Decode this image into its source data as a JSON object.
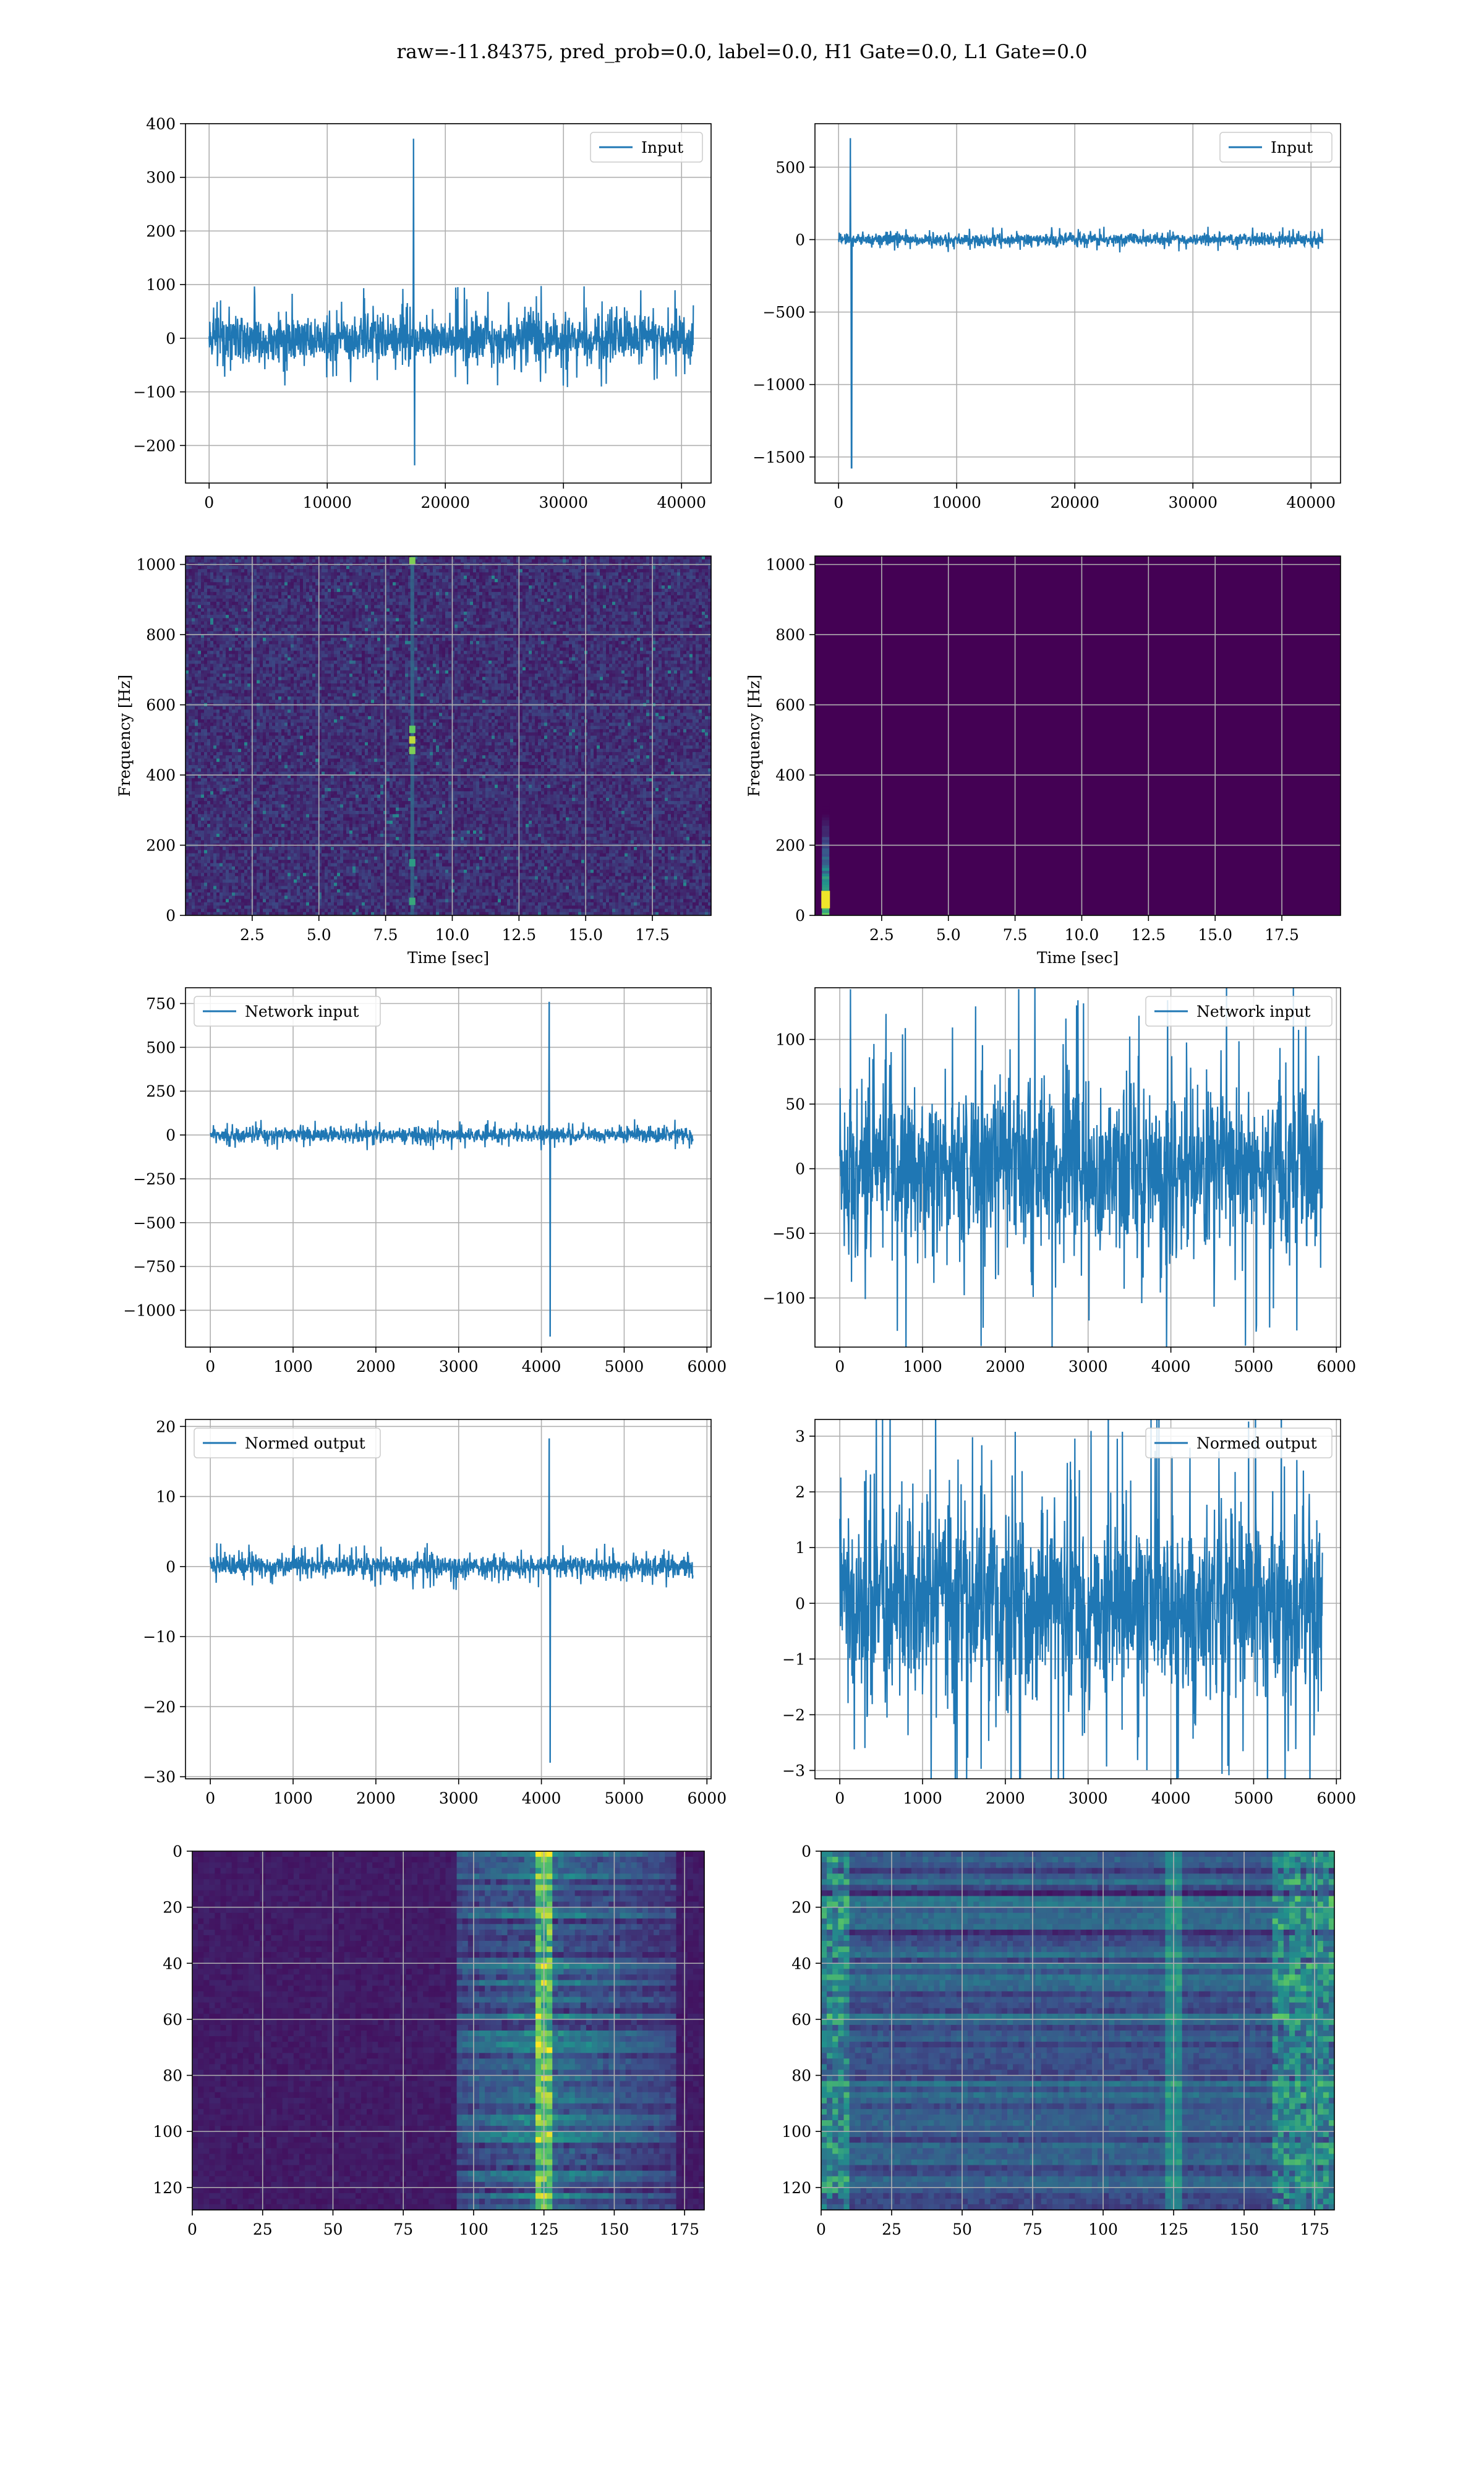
{
  "suptitle": "raw=-11.84375, pred_prob=0.0, label=0.0, H1 Gate=0.0, L1 Gate=0.0",
  "colors": {
    "line": "#1f77b4",
    "grid": "#b0b0b0",
    "viridis_dark": "#440154",
    "viridis_mid": "#21918c",
    "viridis_bright": "#fde725"
  },
  "chart_data": [
    {
      "type": "line",
      "panel": "row1-left",
      "xlim": [
        -2000,
        42500
      ],
      "ylim": [
        -270,
        400
      ],
      "xticks": [
        0,
        10000,
        20000,
        30000,
        40000
      ],
      "yticks": [
        -200,
        -100,
        0,
        100,
        200,
        300,
        400
      ],
      "ytick_labels": [
        "−200",
        "−100",
        "0",
        "100",
        "200",
        "300",
        "400"
      ],
      "xlabel": "",
      "ylabel": "",
      "grid": true,
      "legend": "upper-right",
      "series": [
        {
          "name": "Input",
          "x_range": [
            0,
            41000
          ],
          "noise_amplitude": 75,
          "spikes": [
            {
              "x": 17300,
              "y": 372
            },
            {
              "x": 17400,
              "y": -237
            }
          ]
        }
      ]
    },
    {
      "type": "line",
      "panel": "row1-right",
      "xlim": [
        -2000,
        42500
      ],
      "ylim": [
        -1680,
        800
      ],
      "xticks": [
        0,
        10000,
        20000,
        30000,
        40000
      ],
      "yticks": [
        -1500,
        -1000,
        -500,
        0,
        500
      ],
      "ytick_labels": [
        "−1500",
        "−1000",
        "−500",
        "0",
        "500"
      ],
      "xlabel": "",
      "ylabel": "",
      "grid": true,
      "legend": "upper-right",
      "series": [
        {
          "name": "Input",
          "x_range": [
            0,
            41000
          ],
          "noise_amplitude": 70,
          "spikes": [
            {
              "x": 1000,
              "y": 700
            },
            {
              "x": 1100,
              "y": -1575
            }
          ]
        }
      ]
    },
    {
      "type": "heatmap",
      "panel": "row2-left",
      "xlim": [
        0,
        19.7
      ],
      "ylim": [
        0,
        1024
      ],
      "xticks": [
        2.5,
        5.0,
        7.5,
        10.0,
        12.5,
        15.0,
        17.5
      ],
      "xtick_labels": [
        "2.5",
        "5.0",
        "7.5",
        "10.0",
        "12.5",
        "15.0",
        "17.5"
      ],
      "yticks": [
        0,
        200,
        400,
        600,
        800,
        1000
      ],
      "xlabel": "Time [sec]",
      "ylabel": "Frequency [Hz]",
      "grid": true,
      "feature": "faint broadband noise with a bright vertical streak near t=8.5 s (≈500 Hz and ≈1000 Hz hot spots)"
    },
    {
      "type": "heatmap",
      "panel": "row2-right",
      "xlim": [
        0,
        19.7
      ],
      "ylim": [
        0,
        1024
      ],
      "xticks": [
        2.5,
        5.0,
        7.5,
        10.0,
        12.5,
        15.0,
        17.5
      ],
      "xtick_labels": [
        "2.5",
        "5.0",
        "7.5",
        "10.0",
        "12.5",
        "15.0",
        "17.5"
      ],
      "yticks": [
        0,
        200,
        400,
        600,
        800,
        1000
      ],
      "xlabel": "Time [sec]",
      "ylabel": "Frequency [Hz]",
      "grid": true,
      "feature": "uniform dark background with a bright streak at t≈0.4 s below ≈300 Hz"
    },
    {
      "type": "line",
      "panel": "row3-left",
      "xlim": [
        -300,
        6050
      ],
      "ylim": [
        -1210,
        840
      ],
      "xticks": [
        0,
        1000,
        2000,
        3000,
        4000,
        5000,
        6000
      ],
      "yticks": [
        -1000,
        -750,
        -500,
        -250,
        0,
        250,
        500,
        750
      ],
      "ytick_labels": [
        "−1000",
        "−750",
        "−500",
        "−250",
        "0",
        "250",
        "500",
        "750"
      ],
      "xlabel": "",
      "ylabel": "",
      "grid": true,
      "legend": "upper-left",
      "series": [
        {
          "name": "Network input",
          "x_range": [
            0,
            5830
          ],
          "noise_amplitude": 70,
          "spikes": [
            {
              "x": 4095,
              "y": 760
            },
            {
              "x": 4105,
              "y": -1150
            }
          ]
        }
      ]
    },
    {
      "type": "line",
      "panel": "row3-right",
      "xlim": [
        -300,
        6050
      ],
      "ylim": [
        -138,
        140
      ],
      "xticks": [
        0,
        1000,
        2000,
        3000,
        4000,
        5000,
        6000
      ],
      "yticks": [
        -100,
        -50,
        0,
        50,
        100
      ],
      "ytick_labels": [
        "−100",
        "−50",
        "0",
        "50",
        "100"
      ],
      "xlabel": "",
      "ylabel": "",
      "grid": true,
      "legend": "upper-right",
      "series": [
        {
          "name": "Network input",
          "x_range": [
            0,
            5830
          ],
          "noise_amplitude": 110,
          "spikes": []
        }
      ]
    },
    {
      "type": "line",
      "panel": "row4-left",
      "xlim": [
        -300,
        6050
      ],
      "ylim": [
        -30.3,
        21
      ],
      "xticks": [
        0,
        1000,
        2000,
        3000,
        4000,
        5000,
        6000
      ],
      "yticks": [
        -30,
        -20,
        -10,
        0,
        10,
        20
      ],
      "ytick_labels": [
        "−30",
        "−20",
        "−10",
        "0",
        "10",
        "20"
      ],
      "xlabel": "",
      "ylabel": "",
      "grid": true,
      "legend": "upper-left",
      "series": [
        {
          "name": "Normed output",
          "x_range": [
            0,
            5830
          ],
          "noise_amplitude": 2.6,
          "spikes": [
            {
              "x": 4095,
              "y": 18.3
            },
            {
              "x": 4105,
              "y": -28
            }
          ]
        }
      ]
    },
    {
      "type": "line",
      "panel": "row4-right",
      "xlim": [
        -300,
        6050
      ],
      "ylim": [
        -3.15,
        3.3
      ],
      "xticks": [
        0,
        1000,
        2000,
        3000,
        4000,
        5000,
        6000
      ],
      "yticks": [
        -3,
        -2,
        -1,
        0,
        1,
        2,
        3
      ],
      "ytick_labels": [
        "−3",
        "−2",
        "−1",
        "0",
        "1",
        "2",
        "3"
      ],
      "xlabel": "",
      "ylabel": "",
      "grid": true,
      "legend": "upper-right",
      "series": [
        {
          "name": "Normed output",
          "x_range": [
            0,
            5830
          ],
          "noise_amplitude": 2.9,
          "spikes": []
        }
      ]
    },
    {
      "type": "heatmap",
      "panel": "row5-left",
      "xlim": [
        0,
        182
      ],
      "ylim": [
        128,
        0
      ],
      "xticks": [
        0,
        25,
        50,
        75,
        100,
        125,
        150,
        175
      ],
      "yticks": [
        0,
        20,
        40,
        60,
        80,
        100,
        120
      ],
      "xlabel": "",
      "ylabel": "",
      "grid": true,
      "feature": "mostly dark; brighter horizontal streaks concentrated between columns ≈95 and 170, peak near column 124"
    },
    {
      "type": "heatmap",
      "panel": "row5-right",
      "xlim": [
        0,
        182
      ],
      "ylim": [
        128,
        0
      ],
      "xticks": [
        0,
        25,
        50,
        75,
        100,
        125,
        150,
        175
      ],
      "yticks": [
        0,
        20,
        40,
        60,
        80,
        100,
        120
      ],
      "xlabel": "",
      "ylabel": "",
      "grid": true,
      "feature": "horizontal bands across full width with bright regions near columns 0–10, 125 and 160–180"
    }
  ]
}
